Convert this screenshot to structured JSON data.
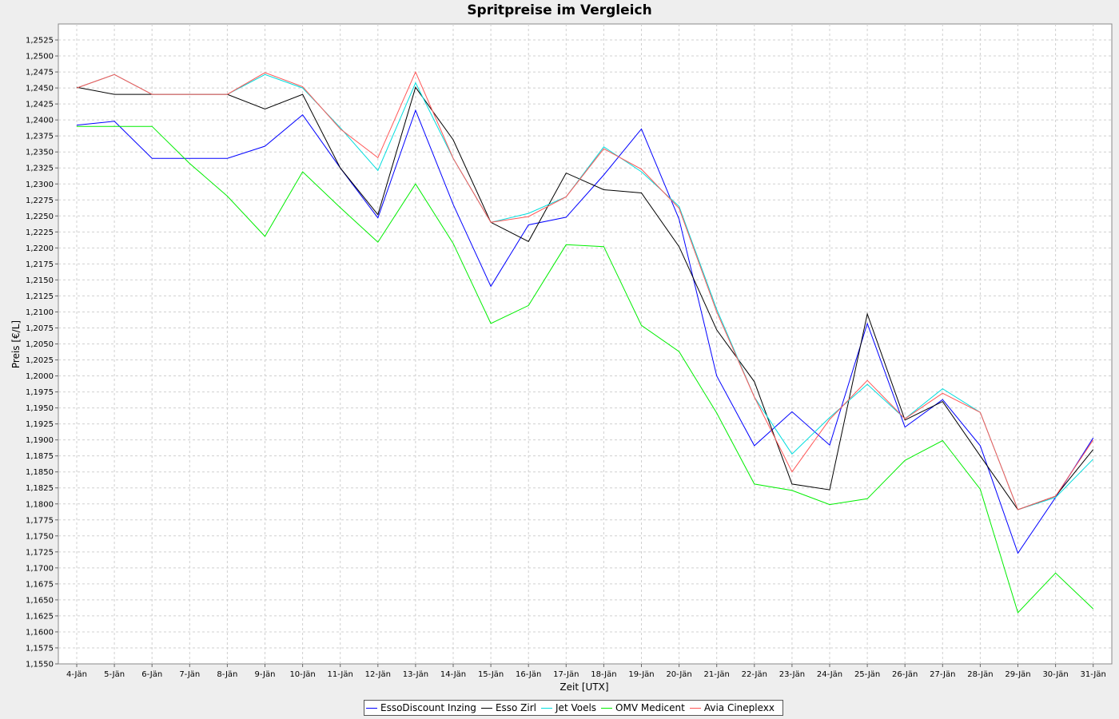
{
  "chart_data": {
    "type": "line",
    "title": "Spritpreise im Vergleich",
    "xlabel": "Zeit [UTX]",
    "ylabel": "Preis [€/L]",
    "categories": [
      "4-Jän",
      "5-Jän",
      "6-Jän",
      "7-Jän",
      "8-Jän",
      "9-Jän",
      "10-Jän",
      "11-Jän",
      "12-Jän",
      "13-Jän",
      "14-Jän",
      "15-Jän",
      "16-Jän",
      "17-Jän",
      "18-Jän",
      "19-Jän",
      "20-Jän",
      "21-Jän",
      "22-Jän",
      "23-Jän",
      "24-Jän",
      "25-Jän",
      "26-Jän",
      "27-Jän",
      "28-Jän",
      "29-Jän",
      "30-Jän",
      "31-Jän"
    ],
    "ylim": [
      1.155,
      1.255
    ],
    "yticks": [
      "1,1550",
      "1,1575",
      "1,1600",
      "1,1625",
      "1,1650",
      "1,1675",
      "1,1700",
      "1,1725",
      "1,1750",
      "1,1775",
      "1,1800",
      "1,1825",
      "1,1850",
      "1,1875",
      "1,1900",
      "1,1925",
      "1,1950",
      "1,1975",
      "1,2000",
      "1,2025",
      "1,2050",
      "1,2075",
      "1,2100",
      "1,2125",
      "1,2150",
      "1,2175",
      "1,2200",
      "1,2225",
      "1,2250",
      "1,2275",
      "1,2300",
      "1,2325",
      "1,2350",
      "1,2375",
      "1,2400",
      "1,2425",
      "1,2450",
      "1,2475",
      "1,2500",
      "1,2525"
    ],
    "grid": true,
    "legend_position": "bottom",
    "series": [
      {
        "name": "EssoDiscount Inzing",
        "color": "#0000ff",
        "values": [
          1.2392,
          1.2398,
          1.234,
          1.234,
          1.234,
          1.2359,
          1.2408,
          1.2325,
          1.2247,
          1.2415,
          1.2268,
          1.214,
          1.2236,
          1.2248,
          1.2314,
          1.2386,
          1.2245,
          1.2,
          1.1891,
          1.1944,
          1.1892,
          1.2082,
          1.192,
          1.1963,
          1.1891,
          1.1723,
          1.181,
          1.1903
        ]
      },
      {
        "name": "Esso Zirl",
        "color": "#000000",
        "values": [
          1.2451,
          1.244,
          1.244,
          1.244,
          1.244,
          1.2417,
          1.244,
          1.2325,
          1.2252,
          1.2451,
          1.2369,
          1.224,
          1.221,
          1.2317,
          1.2291,
          1.2286,
          1.2202,
          1.2072,
          1.1991,
          1.1831,
          1.1822,
          1.2097,
          1.1931,
          1.196,
          1.1875,
          1.1791,
          1.1812,
          1.1885
        ]
      },
      {
        "name": "Jet Voels",
        "color": "#00dddd",
        "values": [
          1.245,
          1.2471,
          1.244,
          1.244,
          1.244,
          1.2471,
          1.245,
          1.2388,
          1.2321,
          1.2458,
          1.234,
          1.224,
          1.2254,
          1.228,
          1.2358,
          1.2319,
          1.2265,
          1.2104,
          1.1967,
          1.1878,
          1.1935,
          1.1987,
          1.1933,
          1.198,
          1.1943,
          1.1791,
          1.181,
          1.187
        ]
      },
      {
        "name": "OMV Medicent",
        "color": "#00ee00",
        "values": [
          1.239,
          1.239,
          1.239,
          1.2332,
          1.2281,
          1.2218,
          1.2319,
          1.2263,
          1.2209,
          1.23,
          1.2207,
          1.2082,
          1.211,
          1.2205,
          1.2202,
          1.2079,
          1.2038,
          1.1942,
          1.1831,
          1.1821,
          1.1799,
          1.1808,
          1.1868,
          1.1899,
          1.1823,
          1.163,
          1.1692,
          1.1636
        ]
      },
      {
        "name": "Avia Cineplexx",
        "color": "#ff5555",
        "values": [
          1.245,
          1.2471,
          1.244,
          1.244,
          1.244,
          1.2474,
          1.2452,
          1.2386,
          1.2341,
          1.2475,
          1.234,
          1.224,
          1.2249,
          1.228,
          1.2355,
          1.2323,
          1.2262,
          1.21,
          1.1967,
          1.185,
          1.1932,
          1.1993,
          1.1933,
          1.1973,
          1.1943,
          1.1791,
          1.1812,
          1.19
        ]
      }
    ]
  }
}
